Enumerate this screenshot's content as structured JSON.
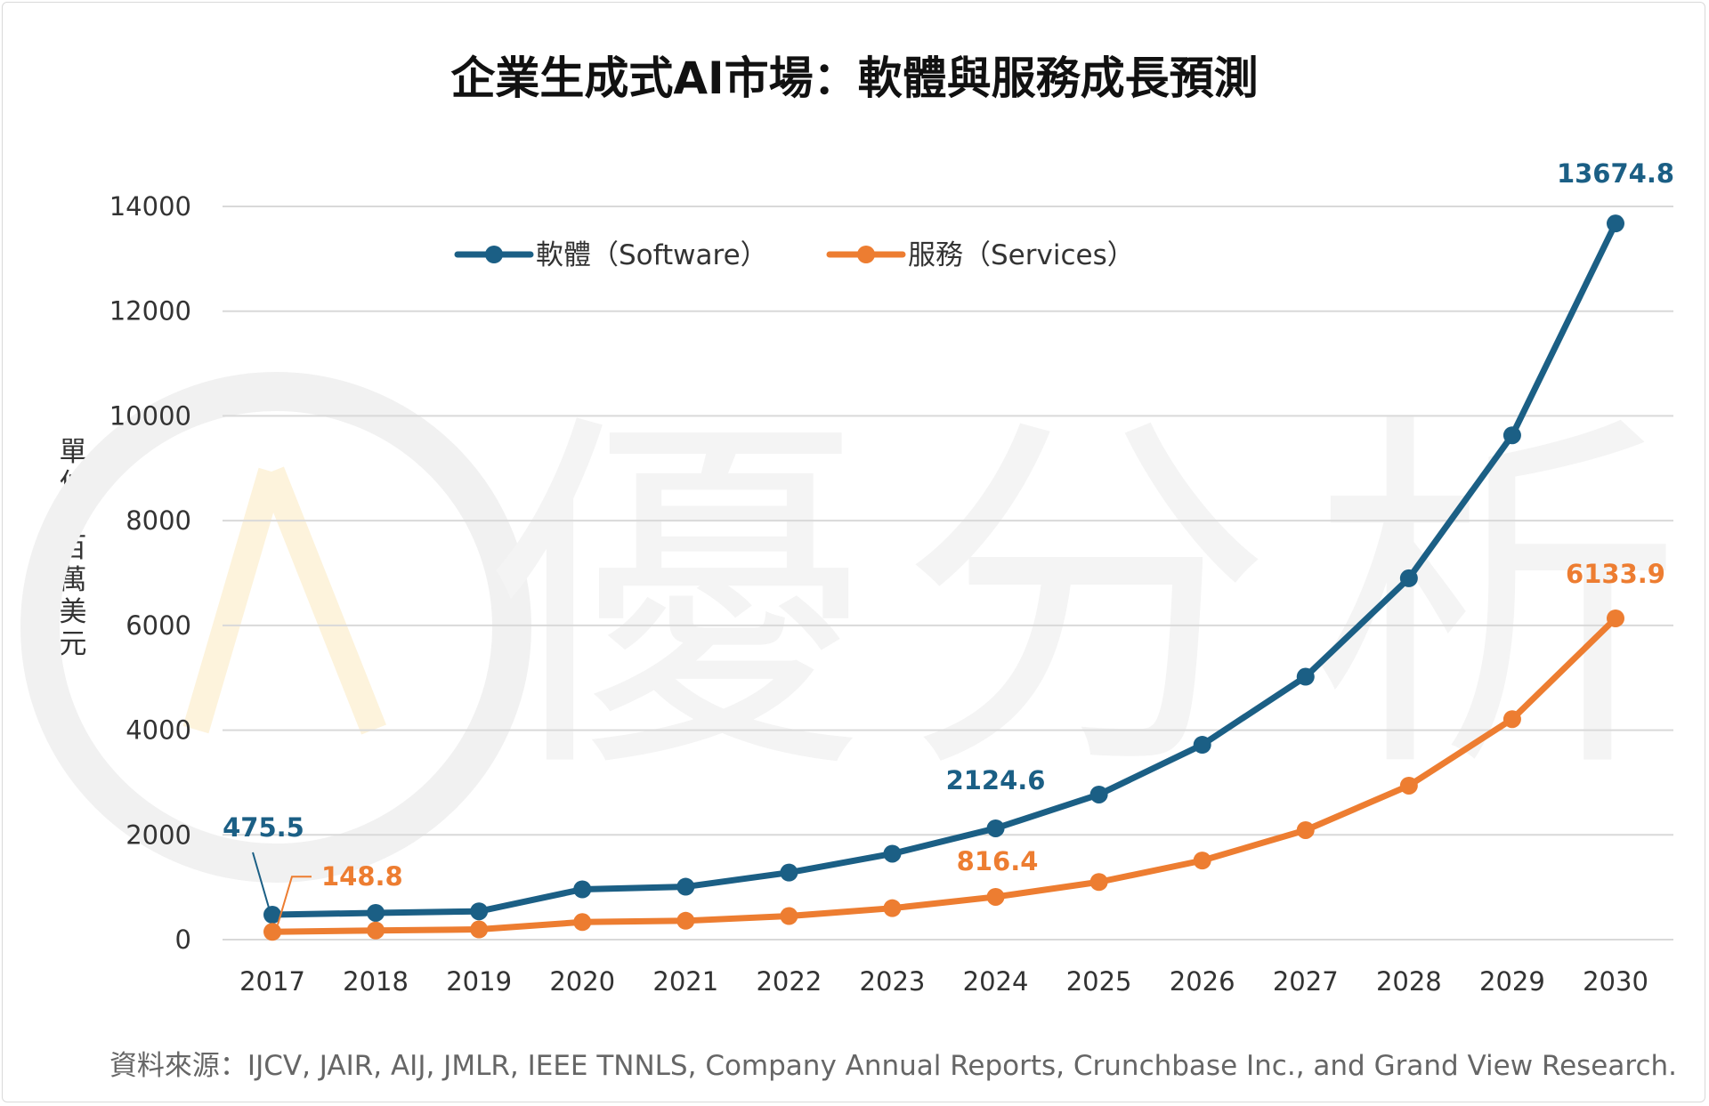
{
  "chart_data": {
    "type": "line",
    "title": "企業生成式AI市場：軟體與服務成長預測",
    "ylabel": "單位：百萬美元",
    "xlabel": "",
    "x": [
      "2017",
      "2018",
      "2019",
      "2020",
      "2021",
      "2022",
      "2023",
      "2024",
      "2025",
      "2026",
      "2027",
      "2028",
      "2029",
      "2030"
    ],
    "ylim": [
      0,
      14000
    ],
    "yticks": [
      "0",
      "2000",
      "4000",
      "6000",
      "8000",
      "10000",
      "12000",
      "14000"
    ],
    "grid": true,
    "legend_position": "top-left",
    "series": [
      {
        "name": "軟體（Software）",
        "color": "#1b5f85",
        "values": [
          475.5,
          510,
          540,
          960,
          1010,
          1280,
          1640,
          2124.6,
          2770,
          3720,
          5020,
          6900,
          9630,
          13674.8
        ],
        "labeled": [
          {
            "index": 0,
            "text": "475.5"
          },
          {
            "index": 7,
            "text": "2124.6"
          },
          {
            "index": 13,
            "text": "13674.8"
          }
        ]
      },
      {
        "name": "服務（Services）",
        "color": "#ed7d31",
        "values": [
          148.8,
          175,
          195,
          335,
          360,
          450,
          600,
          816.4,
          1100,
          1510,
          2090,
          2940,
          4210,
          6133.9
        ],
        "labeled": [
          {
            "index": 0,
            "text": "148.8"
          },
          {
            "index": 7,
            "text": "816.4"
          },
          {
            "index": 13,
            "text": "6133.9"
          }
        ]
      }
    ]
  },
  "watermark": {
    "text": "優分析"
  },
  "source": "資料來源：IJCV, JAIR, AIJ, JMLR, IEEE TNNLS, Company Annual Reports, Crunchbase Inc., and Grand View Research."
}
